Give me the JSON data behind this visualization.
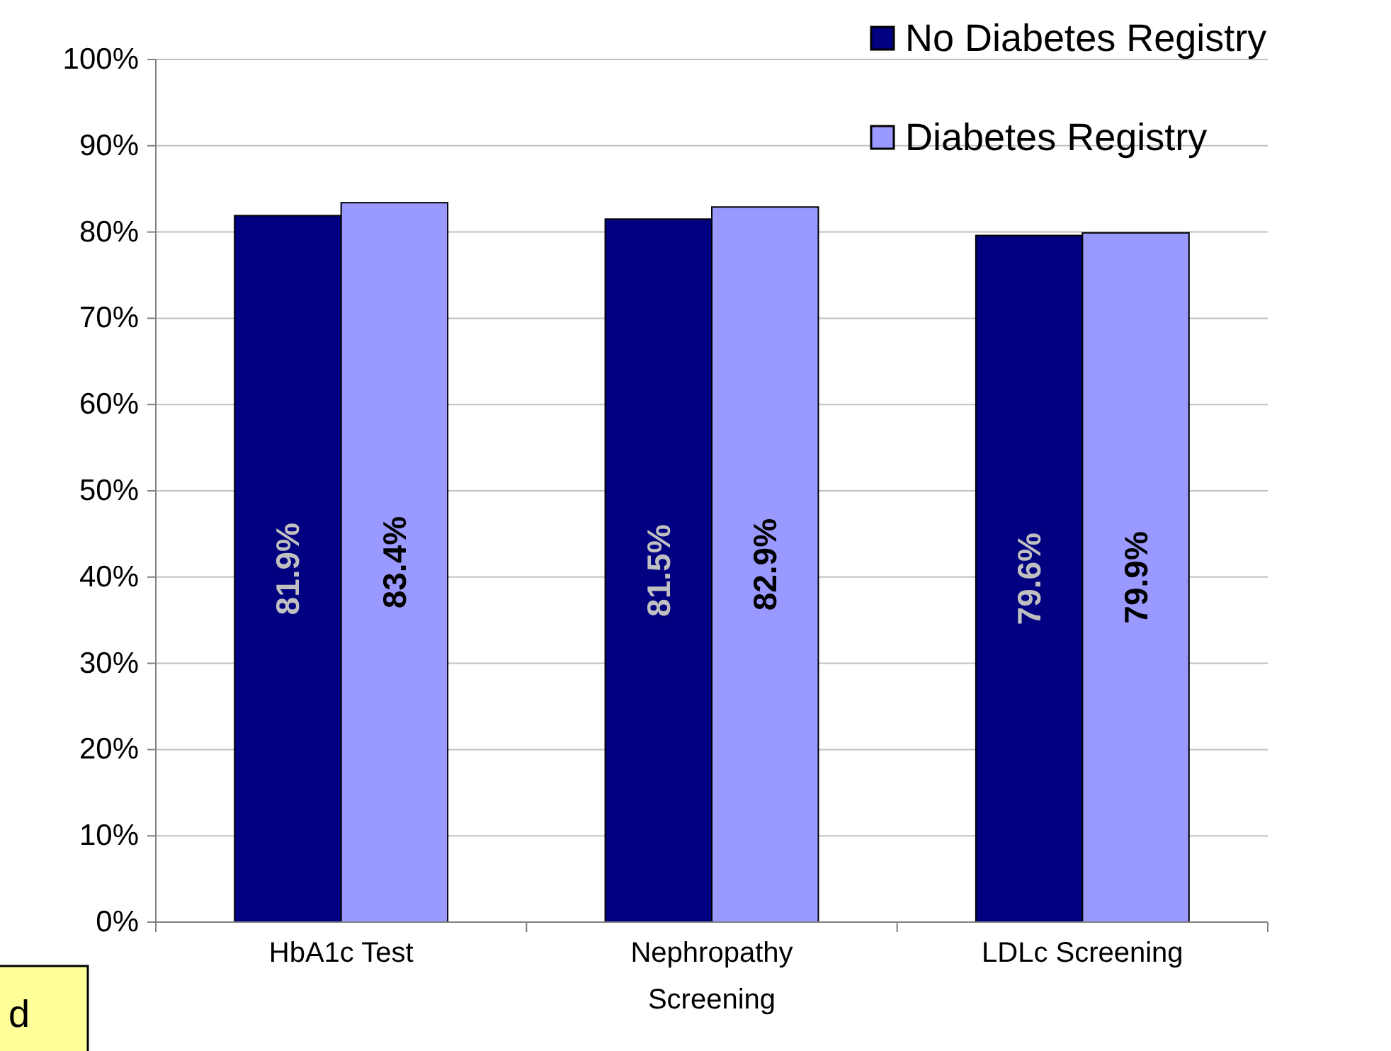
{
  "chart_data": {
    "type": "bar",
    "categories": [
      "HbA1c Test",
      "Nephropathy Screening",
      "LDLc Screening"
    ],
    "series": [
      {
        "name": "No Diabetes Registry",
        "color": "#000080",
        "values": [
          81.9,
          81.5,
          79.6
        ],
        "value_labels": [
          "81.9%",
          "81.5%",
          "79.6%"
        ]
      },
      {
        "name": "Diabetes Registry",
        "color": "#9999ff",
        "values": [
          83.4,
          82.9,
          79.9
        ],
        "value_labels": [
          "83.4%",
          "82.9%",
          "79.9%"
        ]
      }
    ],
    "ylim": [
      0,
      100
    ],
    "yticks": [
      {
        "value": 0,
        "label": "0%"
      },
      {
        "value": 10,
        "label": "10%"
      },
      {
        "value": 20,
        "label": "20%"
      },
      {
        "value": 30,
        "label": "30%"
      },
      {
        "value": 40,
        "label": "40%"
      },
      {
        "value": 50,
        "label": "50%"
      },
      {
        "value": 60,
        "label": "60%"
      },
      {
        "value": 70,
        "label": "70%"
      },
      {
        "value": 80,
        "label": "80%"
      },
      {
        "value": 90,
        "label": "90%"
      },
      {
        "value": 100,
        "label": "100%"
      }
    ],
    "grid": "y",
    "legend": "top right",
    "annotations": [
      "d"
    ]
  }
}
